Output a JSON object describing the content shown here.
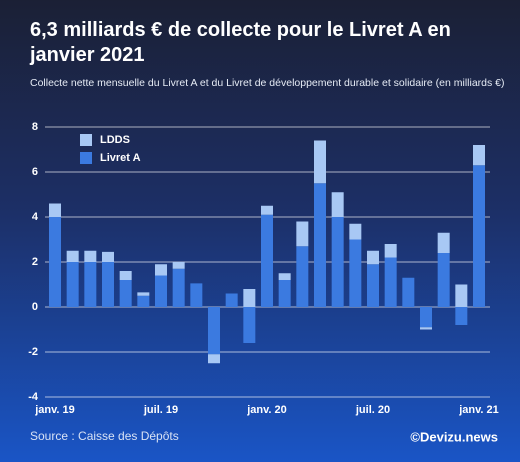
{
  "chart_data": {
    "type": "stacked_bar",
    "title": "6,3 milliards € de collecte pour le Livret A en janvier 2021",
    "subtitle": "Collecte nette mensuelle du Livret A et du Livret de développement durable et solidaire (en milliards €)",
    "categories": [
      "janv. 19",
      null,
      null,
      null,
      null,
      null,
      "juil. 19",
      null,
      null,
      null,
      null,
      null,
      "janv. 20",
      null,
      null,
      null,
      null,
      null,
      "juil. 20",
      null,
      null,
      null,
      null,
      null,
      "janv. 21"
    ],
    "series": [
      {
        "name": "Livret A",
        "color": "#3b7ae0",
        "values": [
          4.0,
          2.0,
          2.0,
          2.0,
          1.2,
          0.5,
          1.4,
          1.7,
          1.05,
          -2.1,
          0.6,
          -1.6,
          4.1,
          1.2,
          2.7,
          5.5,
          4.0,
          3.0,
          1.9,
          2.2,
          1.3,
          -0.9,
          2.4,
          -0.8,
          6.3
        ]
      },
      {
        "name": "LDDS",
        "color": "#a8c8f4",
        "values": [
          0.6,
          0.5,
          0.5,
          0.45,
          0.4,
          0.15,
          0.5,
          0.3,
          0,
          -0.4,
          0,
          0.8,
          0.4,
          0.3,
          1.1,
          1.9,
          1.1,
          0.7,
          0.6,
          0.6,
          0,
          -0.1,
          0.9,
          1.0,
          0.9
        ]
      }
    ],
    "ylim": [
      -4,
      8
    ],
    "yticks": [
      -4,
      -2,
      0,
      2,
      4,
      6,
      8
    ],
    "grid": true,
    "legend": "top-left",
    "source": "Source : Caisse des Dépôts",
    "credit": "©Devizu.news"
  }
}
